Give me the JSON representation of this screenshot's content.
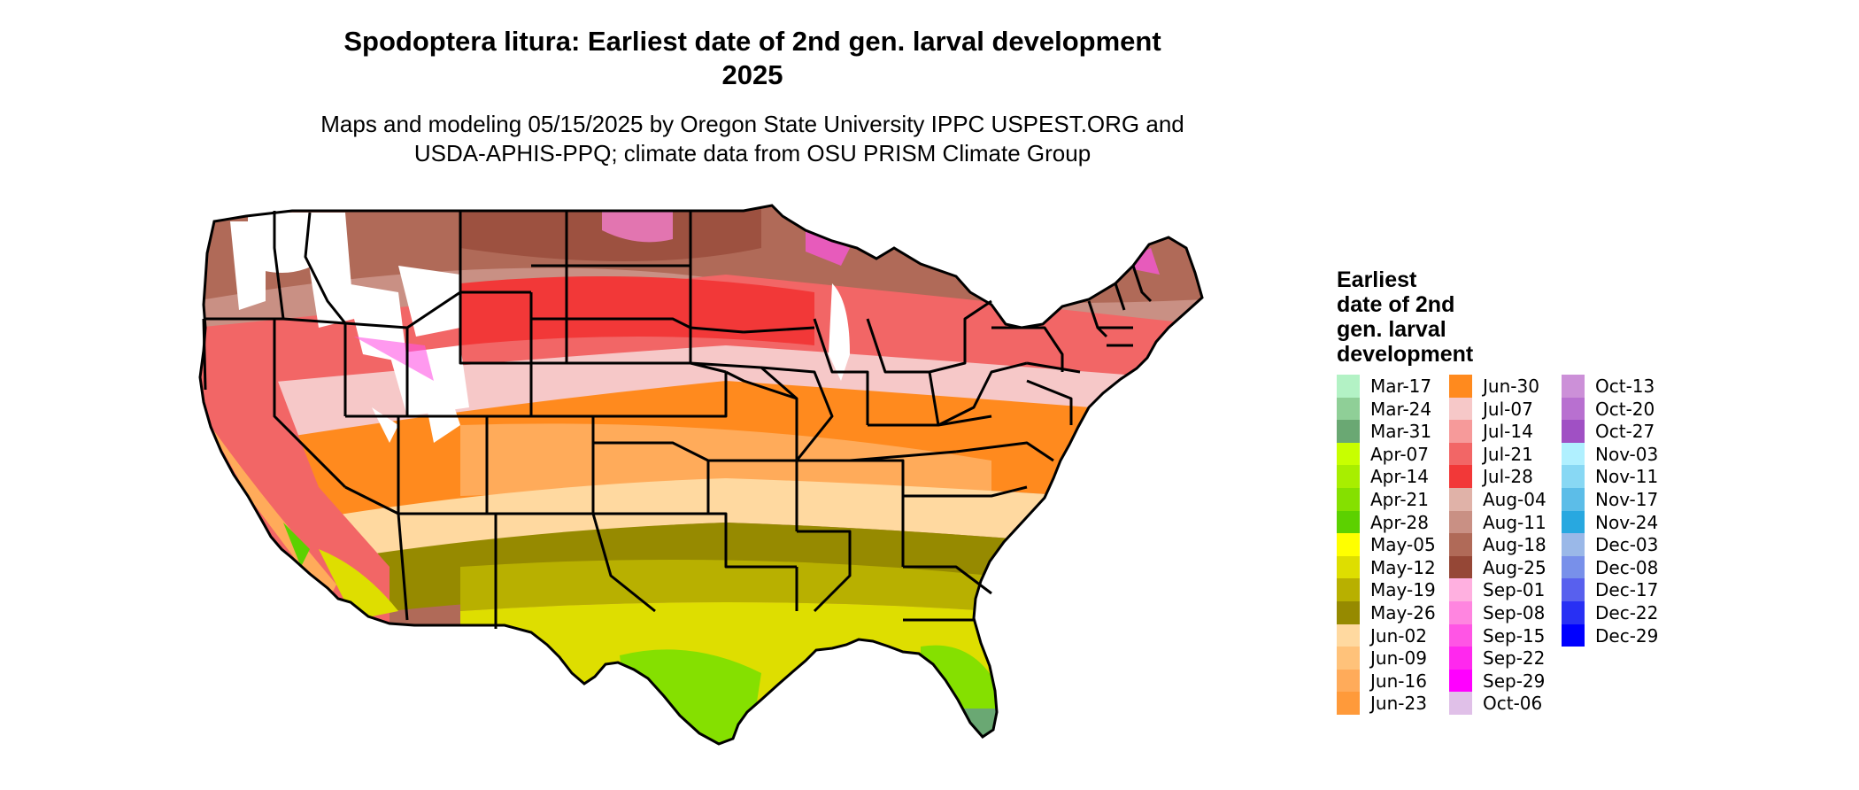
{
  "title_line1": "Spodoptera litura: Earliest date of 2nd gen. larval development",
  "title_line2": "2025",
  "subtitle_line1": "Maps and modeling 05/15/2025 by Oregon State University IPPC USPEST.ORG and",
  "subtitle_line2": "USDA-APHIS-PPQ; climate data from OSU PRISM Climate Group",
  "legend": {
    "title_lines": [
      "Earliest",
      "date of 2nd",
      "gen. larval",
      "development"
    ],
    "items": [
      {
        "label": "Mar-17",
        "color": "#b3f2c5"
      },
      {
        "label": "Mar-24",
        "color": "#8fcf97"
      },
      {
        "label": "Mar-31",
        "color": "#6aa873"
      },
      {
        "label": "Apr-07",
        "color": "#c8ff00"
      },
      {
        "label": "Apr-14",
        "color": "#a8ee00"
      },
      {
        "label": "Apr-21",
        "color": "#85e000"
      },
      {
        "label": "Apr-28",
        "color": "#5cd100"
      },
      {
        "label": "May-05",
        "color": "#ffff00"
      },
      {
        "label": "May-12",
        "color": "#dede00"
      },
      {
        "label": "May-19",
        "color": "#b8b000"
      },
      {
        "label": "May-26",
        "color": "#968a00"
      },
      {
        "label": "Jun-02",
        "color": "#ffd9a0"
      },
      {
        "label": "Jun-09",
        "color": "#ffc27a"
      },
      {
        "label": "Jun-16",
        "color": "#ffab5a"
      },
      {
        "label": "Jun-23",
        "color": "#ff9a3a"
      },
      {
        "label": "Jun-30",
        "color": "#ff8a1e"
      },
      {
        "label": "Jul-07",
        "color": "#f6c8c8"
      },
      {
        "label": "Jul-14",
        "color": "#f69a9a"
      },
      {
        "label": "Jul-21",
        "color": "#f26666"
      },
      {
        "label": "Jul-28",
        "color": "#f23838"
      },
      {
        "label": "Aug-04",
        "color": "#e0b2a8"
      },
      {
        "label": "Aug-11",
        "color": "#c99084"
      },
      {
        "label": "Aug-18",
        "color": "#b06a58"
      },
      {
        "label": "Aug-25",
        "color": "#954736"
      },
      {
        "label": "Sep-01",
        "color": "#ffb0e0"
      },
      {
        "label": "Sep-08",
        "color": "#ff85e0"
      },
      {
        "label": "Sep-15",
        "color": "#ff55e5"
      },
      {
        "label": "Sep-22",
        "color": "#ff28ee"
      },
      {
        "label": "Sep-29",
        "color": "#ff00ff"
      },
      {
        "label": "Oct-06",
        "color": "#e0c0e8"
      },
      {
        "label": "Oct-13",
        "color": "#cc90d8"
      },
      {
        "label": "Oct-20",
        "color": "#b870d0"
      },
      {
        "label": "Oct-27",
        "color": "#a050c4"
      },
      {
        "label": "Nov-03",
        "color": "#b0f0ff"
      },
      {
        "label": "Nov-11",
        "color": "#88d8f4"
      },
      {
        "label": "Nov-17",
        "color": "#5cbde8"
      },
      {
        "label": "Nov-24",
        "color": "#28a8e0"
      },
      {
        "label": "Dec-03",
        "color": "#9ab8e8"
      },
      {
        "label": "Dec-08",
        "color": "#7890ea"
      },
      {
        "label": "Dec-17",
        "color": "#5860ee"
      },
      {
        "label": "Dec-22",
        "color": "#2830f4"
      },
      {
        "label": "Dec-29",
        "color": "#0000ff"
      }
    ]
  }
}
